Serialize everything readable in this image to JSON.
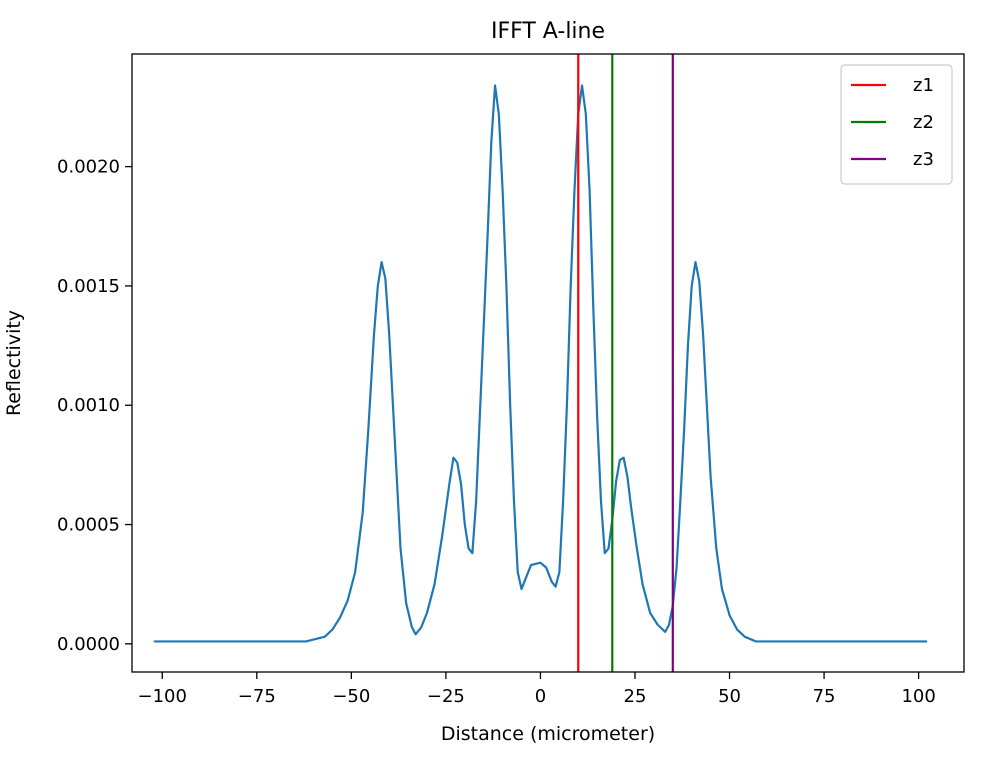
{
  "chart_data": {
    "type": "line",
    "title": "IFFT A-line",
    "xlabel": "Distance (micrometer)",
    "ylabel": "Reflectivity",
    "xlim": [
      -108,
      112
    ],
    "ylim": [
      -0.000118,
      0.002472
    ],
    "xticks": [
      -100,
      -75,
      -50,
      -25,
      0,
      25,
      50,
      75,
      100
    ],
    "xtick_labels": [
      "−100",
      "−75",
      "−50",
      "−25",
      "0",
      "25",
      "50",
      "75",
      "100"
    ],
    "yticks": [
      0,
      0.0005,
      0.001,
      0.0015,
      0.002
    ],
    "ytick_labels": [
      "0.0000",
      "0.0005",
      "0.0010",
      "0.0015",
      "0.0020"
    ],
    "grid": false,
    "legend_position": "top-right",
    "series": [
      {
        "color": "#1f77b4",
        "points": [
          [
            -102,
            1e-05
          ],
          [
            -70,
            1e-05
          ],
          [
            -62,
            1e-05
          ],
          [
            -57,
            3e-05
          ],
          [
            -55,
            6e-05
          ],
          [
            -53,
            0.00011
          ],
          [
            -51,
            0.00018
          ],
          [
            -49,
            0.0003
          ],
          [
            -47,
            0.00055
          ],
          [
            -45.5,
            0.0009
          ],
          [
            -44,
            0.0013
          ],
          [
            -43,
            0.0015
          ],
          [
            -42,
            0.0016
          ],
          [
            -41,
            0.00153
          ],
          [
            -40,
            0.0013
          ],
          [
            -39,
            0.001
          ],
          [
            -38,
            0.0007
          ],
          [
            -37,
            0.0004
          ],
          [
            -35.5,
            0.00017
          ],
          [
            -34,
            7e-05
          ],
          [
            -33,
            4e-05
          ],
          [
            -31.5,
            7e-05
          ],
          [
            -30,
            0.00013
          ],
          [
            -28,
            0.00025
          ],
          [
            -26,
            0.00045
          ],
          [
            -24,
            0.00068
          ],
          [
            -23,
            0.00078
          ],
          [
            -22,
            0.00076
          ],
          [
            -21,
            0.00067
          ],
          [
            -20,
            0.0005
          ],
          [
            -19,
            0.0004
          ],
          [
            -18,
            0.00038
          ],
          [
            -17,
            0.0006
          ],
          [
            -15.5,
            0.00115
          ],
          [
            -14,
            0.0017
          ],
          [
            -13,
            0.0021
          ],
          [
            -12,
            0.00234
          ],
          [
            -11,
            0.00222
          ],
          [
            -10,
            0.0019
          ],
          [
            -9,
            0.0015
          ],
          [
            -8,
            0.001
          ],
          [
            -7,
            0.0006
          ],
          [
            -6,
            0.0003
          ],
          [
            -5,
            0.00023
          ],
          [
            -4,
            0.00027
          ],
          [
            -2.5,
            0.00033
          ],
          [
            0,
            0.00034
          ],
          [
            1.5,
            0.00032
          ],
          [
            3,
            0.00026
          ],
          [
            4,
            0.00024
          ],
          [
            5,
            0.0003
          ],
          [
            6,
            0.0006
          ],
          [
            7,
            0.001
          ],
          [
            8,
            0.0015
          ],
          [
            9,
            0.0019
          ],
          [
            10,
            0.00222
          ],
          [
            11,
            0.00234
          ],
          [
            12,
            0.00222
          ],
          [
            13,
            0.0019
          ],
          [
            14,
            0.0014
          ],
          [
            15,
            0.00095
          ],
          [
            16,
            0.0006
          ],
          [
            17,
            0.00038
          ],
          [
            18,
            0.0004
          ],
          [
            19,
            0.00052
          ],
          [
            20,
            0.00068
          ],
          [
            21,
            0.00077
          ],
          [
            22,
            0.00078
          ],
          [
            23,
            0.0007
          ],
          [
            24,
            0.00057
          ],
          [
            25.5,
            0.0004
          ],
          [
            27,
            0.00025
          ],
          [
            29,
            0.00013
          ],
          [
            31,
            8e-05
          ],
          [
            33,
            5e-05
          ],
          [
            34,
            8e-05
          ],
          [
            35,
            0.00016
          ],
          [
            36,
            0.00032
          ],
          [
            37,
            0.0006
          ],
          [
            38,
            0.0009
          ],
          [
            39,
            0.00125
          ],
          [
            40,
            0.0015
          ],
          [
            41,
            0.0016
          ],
          [
            42,
            0.00152
          ],
          [
            43,
            0.0013
          ],
          [
            44,
            0.001
          ],
          [
            45,
            0.0007
          ],
          [
            46.5,
            0.0004
          ],
          [
            48,
            0.00023
          ],
          [
            50,
            0.00012
          ],
          [
            52,
            6e-05
          ],
          [
            54,
            3e-05
          ],
          [
            57,
            1e-05
          ],
          [
            70,
            1e-05
          ],
          [
            102,
            1e-05
          ]
        ]
      }
    ],
    "vlines": [
      {
        "name": "z1",
        "x": 10,
        "color": "#ff0000"
      },
      {
        "name": "z2",
        "x": 19,
        "color": "#008000"
      },
      {
        "name": "z3",
        "x": 35,
        "color": "#800080"
      }
    ]
  }
}
